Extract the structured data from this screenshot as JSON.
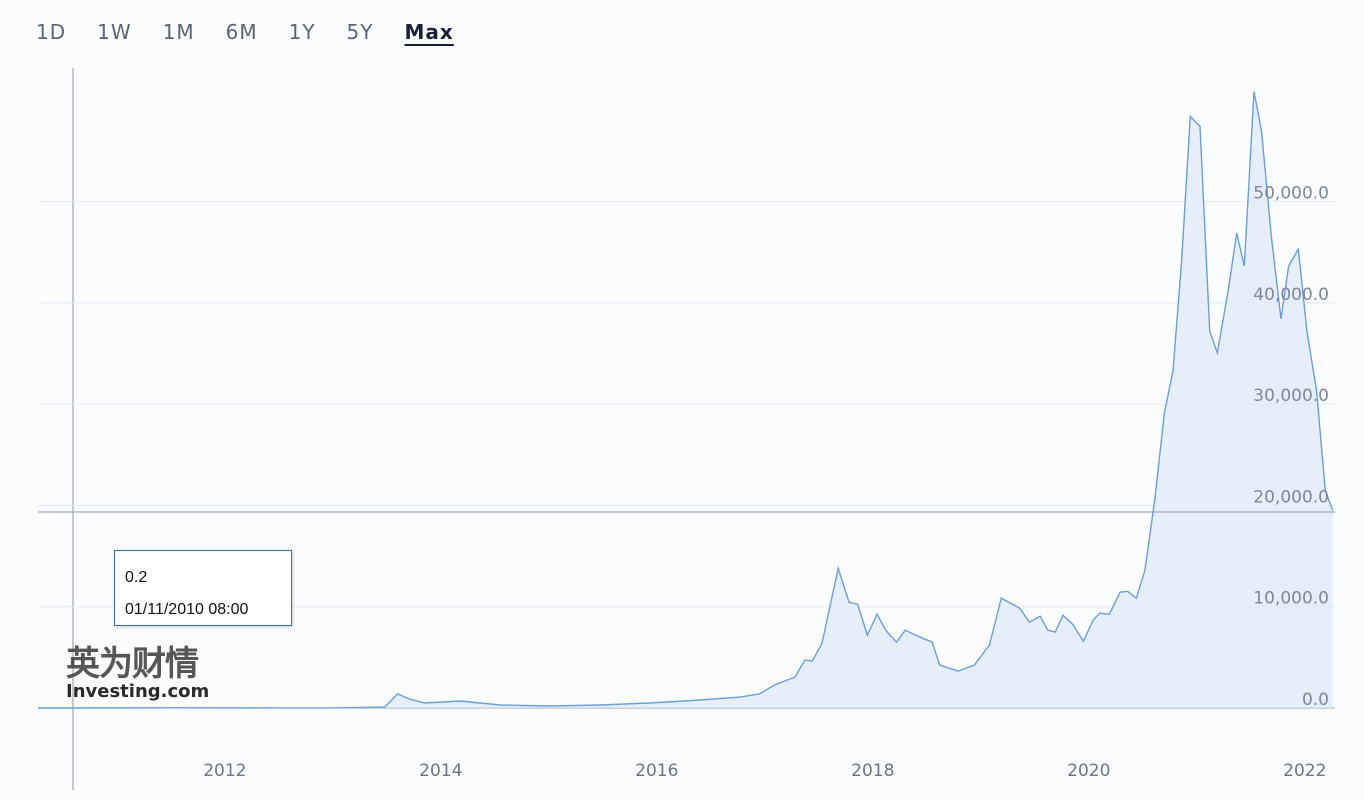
{
  "range_buttons": [
    "1D",
    "1W",
    "1M",
    "6M",
    "1Y",
    "5Y",
    "Max"
  ],
  "active_range": 6,
  "tooltip": {
    "value": "0.2",
    "date": "01/11/2010 08:00"
  },
  "watermark": [
    "英为财情",
    "Investing.com"
  ],
  "chart_data": {
    "type": "area",
    "color": "#6a9fd8",
    "fill": "#dde9f6",
    "grid": true,
    "x": [
      2010.27,
      2011.5,
      2012.5,
      2013.0,
      2013.48,
      2013.6,
      2013.71,
      2013.85,
      2014.18,
      2014.55,
      2015.01,
      2015.47,
      2015.94,
      2016.4,
      2016.77,
      2016.95,
      2017.09,
      2017.28,
      2017.37,
      2017.44,
      2017.53,
      2017.68,
      2017.78,
      2017.86,
      2017.95,
      2018.04,
      2018.12,
      2018.22,
      2018.3,
      2018.44,
      2018.55,
      2018.62,
      2018.79,
      2018.94,
      2019.08,
      2019.19,
      2019.36,
      2019.45,
      2019.55,
      2019.62,
      2019.69,
      2019.76,
      2019.85,
      2019.95,
      2020.04,
      2020.1,
      2020.19,
      2020.29,
      2020.36,
      2020.44,
      2020.52,
      2020.61,
      2020.7,
      2020.78,
      2020.86,
      2020.94,
      2021.03,
      2021.12,
      2021.19,
      2021.29,
      2021.37,
      2021.44,
      2021.53,
      2021.6,
      2021.69,
      2021.78,
      2021.85,
      2021.94,
      2022.02,
      2022.11,
      2022.19,
      2022.26
    ],
    "values": [
      0.2,
      15,
      10,
      13,
      100,
      1380,
      890,
      490,
      690,
      300,
      200,
      300,
      490,
      790,
      1080,
      1380,
      2270,
      3050,
      4730,
      4630,
      6400,
      13790,
      10440,
      10240,
      7190,
      9260,
      7680,
      6500,
      7680,
      6990,
      6500,
      4240,
      3640,
      4240,
      6210,
      10840,
      9850,
      8470,
      9060,
      7680,
      7490,
      9160,
      8270,
      6600,
      8670,
      9360,
      9260,
      11430,
      11520,
      10840,
      13590,
      20490,
      29160,
      33290,
      44130,
      58410,
      57430,
      37230,
      35070,
      41170,
      46890,
      43640,
      60870,
      56930,
      46590,
      38420,
      43640,
      45310,
      37230,
      31320,
      21470,
      19500
    ],
    "xlim": [
      2010.27,
      2022.28
    ],
    "xticks": [
      2012,
      2014,
      2016,
      2018,
      2020,
      2022
    ],
    "ylim": [
      0,
      63000
    ],
    "yticks": [
      {
        "value": 0,
        "label": "0.0"
      },
      {
        "value": 10000,
        "label": "10,000.0"
      },
      {
        "value": 20000,
        "label": "20,000.0"
      },
      {
        "value": 30000,
        "label": "30,000.0"
      },
      {
        "value": 40000,
        "label": "40,000.0"
      },
      {
        "value": 50000,
        "label": "50,000.0"
      }
    ]
  }
}
